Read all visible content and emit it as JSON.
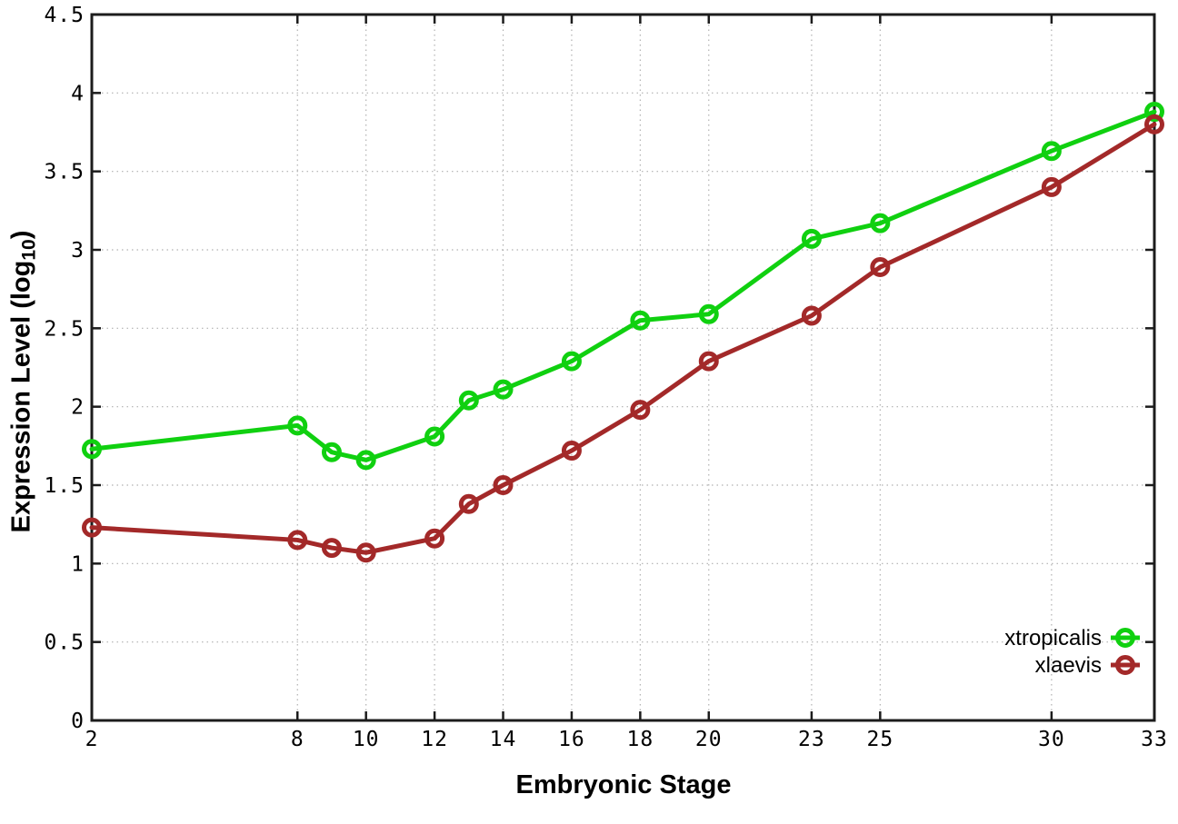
{
  "labels": {
    "xlabel": "Embryonic Stage",
    "ylabel_prefix": "Expression Level (log",
    "ylabel_sub": "10",
    "ylabel_suffix": ")"
  },
  "colors": {
    "background": "#ffffff",
    "axis": "#1c1c1c",
    "grid": "#b0b0b0",
    "tick_text": "#000000",
    "xtropicalis": "#10d010",
    "xlaevis": "#a32929"
  },
  "legend": {
    "entries": [
      "xtropicalis",
      "xlaevis"
    ],
    "position": "bottom-right-inside"
  },
  "chart_data": {
    "type": "line",
    "title": "",
    "xlabel": "Embryonic Stage",
    "ylabel": "Expression Level (log10)",
    "x": [
      2,
      8,
      9,
      10,
      12,
      13,
      14,
      16,
      18,
      20,
      23,
      25,
      30,
      33
    ],
    "series": [
      {
        "name": "xtropicalis",
        "color": "#10d010",
        "marker": "open-circle",
        "values": [
          1.73,
          1.88,
          1.71,
          1.66,
          1.81,
          2.04,
          2.11,
          2.29,
          2.55,
          2.59,
          3.07,
          3.17,
          3.63,
          3.88
        ]
      },
      {
        "name": "xlaevis",
        "color": "#a32929",
        "marker": "open-circle",
        "values": [
          1.23,
          1.15,
          1.1,
          1.07,
          1.16,
          1.38,
          1.5,
          1.72,
          1.98,
          2.29,
          2.58,
          2.89,
          3.4,
          3.8
        ]
      }
    ],
    "x_ticks": [
      2,
      8,
      10,
      12,
      14,
      16,
      18,
      20,
      23,
      25,
      30,
      33
    ],
    "y_ticks": [
      0,
      0.5,
      1,
      1.5,
      2,
      2.5,
      3,
      3.5,
      4,
      4.5
    ],
    "y_tick_labels": [
      "0",
      "0.5",
      "1",
      "1.5",
      "2",
      "2.5",
      "3",
      "3.5",
      "4",
      "4.5"
    ],
    "xlim": [
      2,
      33
    ],
    "ylim": [
      0,
      4.5
    ],
    "grid": true,
    "legend_position": "bottom-right-inside"
  }
}
